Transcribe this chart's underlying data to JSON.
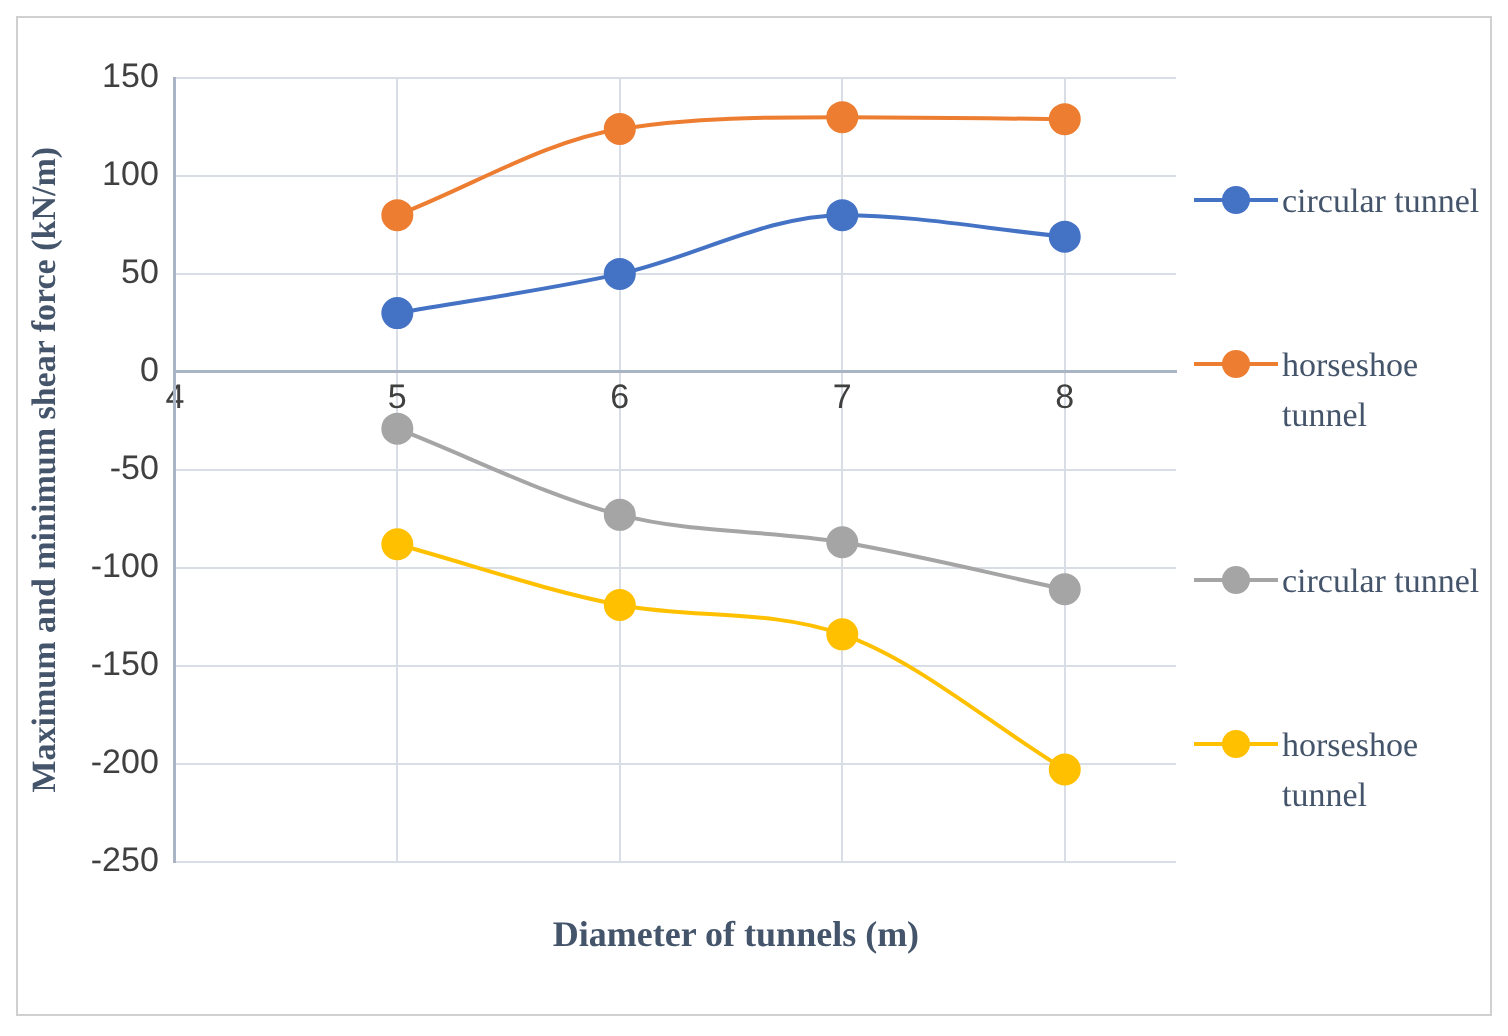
{
  "chart_data": {
    "type": "line",
    "xlabel": "Diameter of tunnels (m)",
    "ylabel": "Maximum and minimum shear force (kN/m)",
    "x": [
      5,
      6,
      7,
      8
    ],
    "xlim": [
      4,
      8.5
    ],
    "xticks": [
      4,
      5,
      6,
      7,
      8
    ],
    "ylim": [
      -250,
      150
    ],
    "yticks": [
      -250,
      -200,
      -150,
      -100,
      -50,
      0,
      50,
      100,
      150
    ],
    "grid": true,
    "legend": "right",
    "marker": "circle",
    "line_style": "solid",
    "series": [
      {
        "name": "circular tunnel",
        "color": "#4472c4",
        "values": [
          30,
          50,
          80,
          69
        ]
      },
      {
        "name": "horseshoe tunnel",
        "color": "#ed7d31",
        "values": [
          80,
          124,
          130,
          129
        ]
      },
      {
        "name": "circular tunnel",
        "color": "#a5a5a5",
        "values": [
          -29,
          -73,
          -87,
          -111
        ]
      },
      {
        "name": "horseshoe tunnel",
        "color": "#ffc000",
        "values": [
          -88,
          -119,
          -134,
          -203
        ]
      }
    ]
  }
}
